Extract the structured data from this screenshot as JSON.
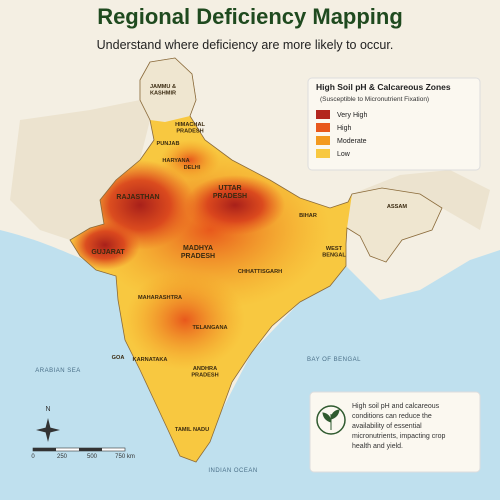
{
  "header": {
    "title": "Regional Deficiency Mapping",
    "subtitle": "Understand where deficiency are more likely to occur."
  },
  "legend": {
    "title": "High Soil pH & Calcareous Zones",
    "subtitle": "(Susceptible to Micronutrient Fixation)",
    "items": [
      {
        "label": "Very High",
        "color": "#b3261e"
      },
      {
        "label": "High",
        "color": "#e8581c"
      },
      {
        "label": "Moderate",
        "color": "#f39a1f"
      },
      {
        "label": "Low",
        "color": "#f8c840"
      }
    ]
  },
  "regions": [
    {
      "lines": [
        "JAMMU &",
        "KASHMIR"
      ]
    },
    {
      "lines": [
        "HIMACHAL",
        "PRADESH"
      ]
    },
    {
      "lines": [
        "PUNJAB"
      ]
    },
    {
      "lines": [
        "HARYANA"
      ]
    },
    {
      "lines": [
        "DELHI"
      ]
    },
    {
      "lines": [
        "UTTAR",
        "PRADESH"
      ]
    },
    {
      "lines": [
        "RAJASTHAN"
      ]
    },
    {
      "lines": [
        "GUJARAT"
      ]
    },
    {
      "lines": [
        "MADHYA",
        "PRADESH"
      ]
    },
    {
      "lines": [
        "BIHAR"
      ]
    },
    {
      "lines": [
        "WEST",
        "BENGAL"
      ]
    },
    {
      "lines": [
        "CHHATTISGARH"
      ]
    },
    {
      "lines": [
        "MAHARASHTRA"
      ]
    },
    {
      "lines": [
        "TELANGANA"
      ]
    },
    {
      "lines": [
        "GOA"
      ]
    },
    {
      "lines": [
        "KARNATAKA"
      ]
    },
    {
      "lines": [
        "ANDHRA",
        "PRADESH"
      ]
    },
    {
      "lines": [
        "TAMIL NADU"
      ]
    },
    {
      "lines": [
        "ASSAM"
      ]
    }
  ],
  "seas": [
    "ARABIAN SEA",
    "BAY OF BENGAL",
    "INDIAN OCEAN"
  ],
  "compass": "N",
  "scale": [
    "0",
    "250",
    "500",
    "750 km"
  ],
  "note": "High soil pH and calcareous conditions can reduce the availability of essential micronutrients, impacting crop health and yield."
}
